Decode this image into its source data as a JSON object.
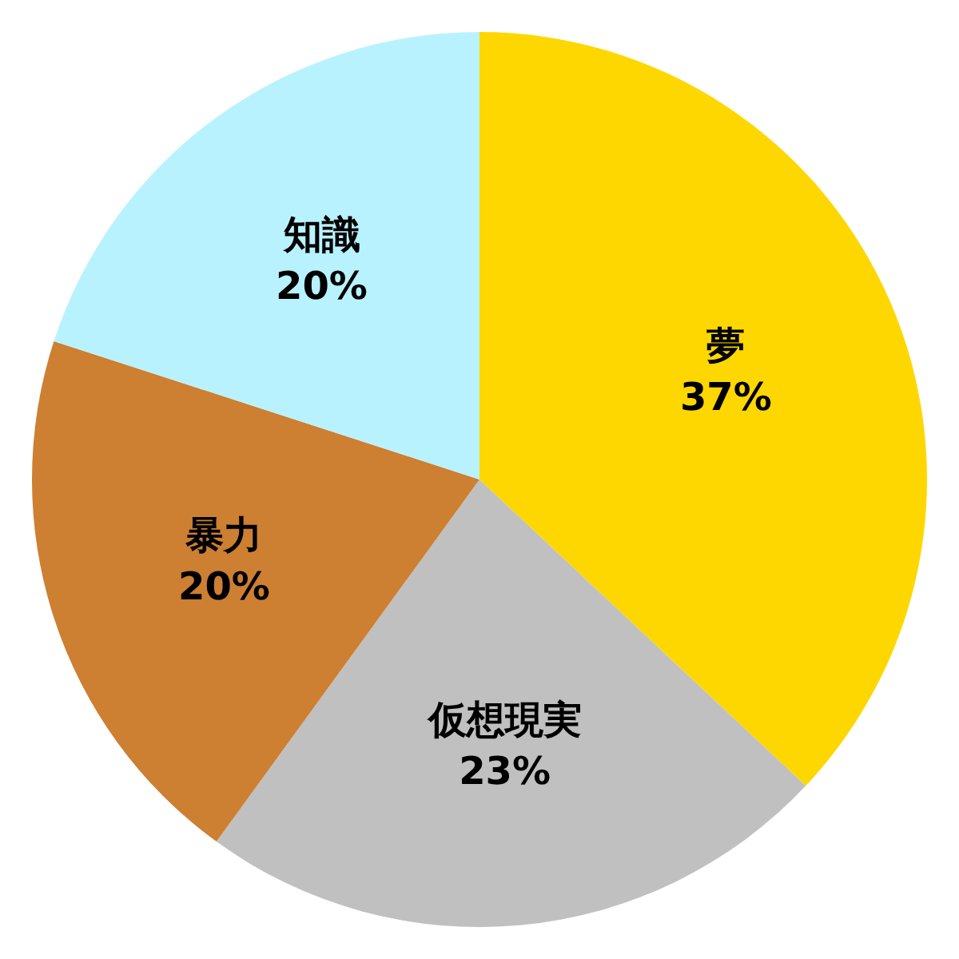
{
  "chart_data": {
    "type": "pie",
    "categories": [
      "夢",
      "仮想現実",
      "暴力",
      "知識"
    ],
    "values": [
      37,
      23,
      20,
      20
    ],
    "colors": [
      "#ffd700",
      "#c0c0c0",
      "#cd7f32",
      "#b9f2ff"
    ],
    "value_labels": [
      "37%",
      "23%",
      "20%",
      "20%"
    ]
  }
}
